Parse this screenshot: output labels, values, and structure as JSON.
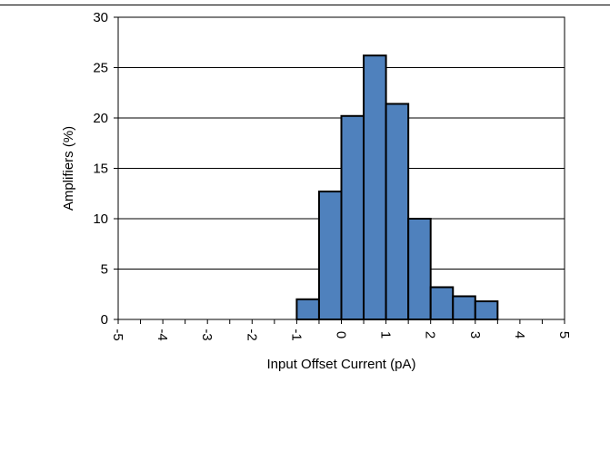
{
  "chart_data": {
    "type": "bar",
    "title": "",
    "xlabel": "Input Offset Current (pA)",
    "ylabel": "Amplifiers (%)",
    "x_tick_labels": [
      "-5",
      "-4",
      "-3",
      "-2",
      "-1",
      "0",
      "1",
      "2",
      "3",
      "4",
      "5"
    ],
    "y_tick_labels": [
      "0",
      "5",
      "10",
      "15",
      "20",
      "25",
      "30"
    ],
    "xlim": [
      -5,
      5
    ],
    "ylim": [
      0,
      30
    ],
    "bin_width": 0.5,
    "bins": [
      {
        "start": -5.0,
        "value": 0
      },
      {
        "start": -4.5,
        "value": 0
      },
      {
        "start": -4.0,
        "value": 0
      },
      {
        "start": -3.5,
        "value": 0
      },
      {
        "start": -3.0,
        "value": 0
      },
      {
        "start": -2.5,
        "value": 0
      },
      {
        "start": -2.0,
        "value": 0
      },
      {
        "start": -1.5,
        "value": 0
      },
      {
        "start": -1.0,
        "value": 2.0
      },
      {
        "start": -0.5,
        "value": 12.7
      },
      {
        "start": 0.0,
        "value": 20.2
      },
      {
        "start": 0.5,
        "value": 26.2
      },
      {
        "start": 1.0,
        "value": 21.4
      },
      {
        "start": 1.5,
        "value": 10.0
      },
      {
        "start": 2.0,
        "value": 3.2
      },
      {
        "start": 2.5,
        "value": 2.3
      },
      {
        "start": 3.0,
        "value": 1.8
      },
      {
        "start": 3.5,
        "value": 0
      },
      {
        "start": 4.0,
        "value": 0
      },
      {
        "start": 4.5,
        "value": 0
      }
    ],
    "grid": "horizontal",
    "colors": {
      "bar_fill": "#4f81bd",
      "bar_edge": "#000000",
      "grid": "#000000"
    }
  }
}
